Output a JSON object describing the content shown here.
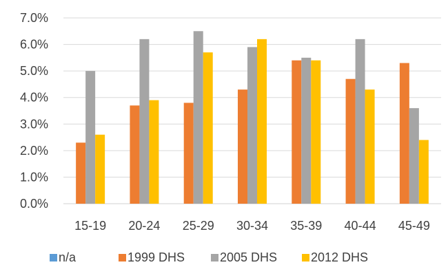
{
  "chart_data": {
    "type": "bar",
    "title": "",
    "xlabel": "",
    "ylabel": "",
    "categories": [
      "15-19",
      "20-24",
      "25-29",
      "30-34",
      "35-39",
      "40-44",
      "45-49"
    ],
    "series": [
      {
        "name": "n/a",
        "color": "#5B9BD5",
        "values": [
          null,
          null,
          null,
          null,
          null,
          null,
          null
        ]
      },
      {
        "name": "1999 DHS",
        "color": "#ED7D31",
        "values": [
          2.3,
          3.7,
          3.8,
          4.3,
          5.4,
          4.7,
          5.3
        ]
      },
      {
        "name": "2005 DHS",
        "color": "#A5A5A5",
        "values": [
          5.0,
          6.2,
          6.5,
          5.9,
          5.5,
          6.2,
          3.6
        ]
      },
      {
        "name": "2012 DHS",
        "color": "#FFC000",
        "values": [
          2.6,
          3.9,
          5.7,
          6.2,
          5.4,
          4.3,
          2.4
        ]
      }
    ],
    "ylim": [
      0,
      7
    ],
    "y_ticks": [
      "0.0%",
      "1.0%",
      "2.0%",
      "3.0%",
      "4.0%",
      "5.0%",
      "6.0%",
      "7.0%"
    ],
    "grid": true,
    "legend_position": "bottom"
  }
}
